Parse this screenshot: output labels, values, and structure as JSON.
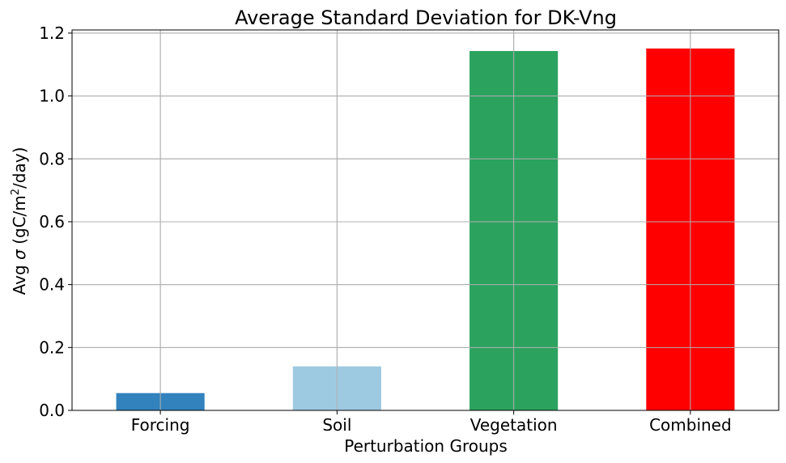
{
  "chart_data": {
    "type": "bar",
    "title": "Average Standard Deviation for DK-Vng",
    "xlabel": "Perturbation Groups",
    "ylabel_parts": {
      "prefix": "Avg ",
      "sigma": "σ",
      "unit_open": " (gC/m",
      "unit_sup": "2",
      "unit_close": "/day)"
    },
    "categories": [
      "Forcing",
      "Soil",
      "Vegetation",
      "Combined"
    ],
    "values": [
      0.055,
      0.14,
      1.143,
      1.151
    ],
    "colors": [
      "#3182bd",
      "#9ecae1",
      "#2ca25f",
      "#ff0000"
    ],
    "ylim": [
      0,
      1.21
    ],
    "yticks": [
      0.0,
      0.2,
      0.4,
      0.6,
      0.8,
      1.0,
      1.2
    ],
    "ytick_labels": [
      "0.0",
      "0.2",
      "0.4",
      "0.6",
      "0.8",
      "1.0",
      "1.2"
    ],
    "grid": true
  }
}
